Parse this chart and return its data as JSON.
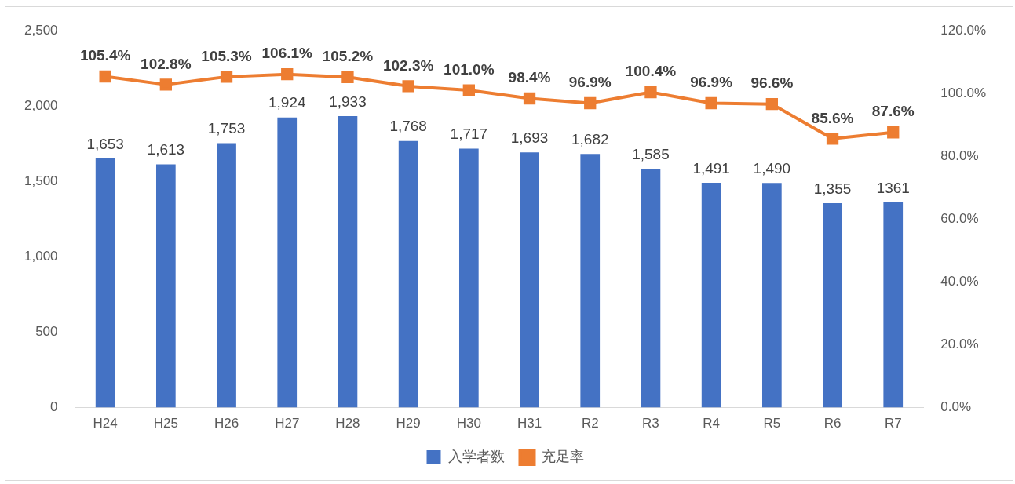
{
  "chart_data": {
    "type": "bar",
    "categories": [
      "H24",
      "H25",
      "H26",
      "H27",
      "H28",
      "H29",
      "H30",
      "H31",
      "R2",
      "R3",
      "R4",
      "R5",
      "R6",
      "R7"
    ],
    "series": [
      {
        "name": "入学者数",
        "color": "#4472c4",
        "values": [
          1653,
          1613,
          1753,
          1924,
          1933,
          1768,
          1717,
          1693,
          1682,
          1585,
          1491,
          1490,
          1355,
          1361
        ],
        "value_labels": [
          "1,653",
          "1,613",
          "1,753",
          "1,924",
          "1,933",
          "1,768",
          "1,717",
          "1,693",
          "1,682",
          "1,585",
          "1,491",
          "1,490",
          "1,355",
          "1361"
        ]
      },
      {
        "name": "充足率",
        "type": "line",
        "axis": "y2",
        "color": "#ed7d31",
        "marker": "square",
        "values": [
          105.4,
          102.8,
          105.3,
          106.1,
          105.2,
          102.3,
          101.0,
          98.4,
          96.9,
          100.4,
          96.9,
          96.6,
          85.6,
          87.6
        ],
        "value_labels": [
          "105.4%",
          "102.8%",
          "105.3%",
          "106.1%",
          "105.2%",
          "102.3%",
          "101.0%",
          "98.4%",
          "96.9%",
          "100.4%",
          "96.9%",
          "96.6%",
          "85.6%",
          "87.6%"
        ]
      }
    ],
    "ylim": [
      0,
      2500
    ],
    "yticks": [
      0,
      {
        "value": 500,
        "label": "500"
      },
      {
        "value": 1000,
        "label": "1,000"
      },
      {
        "value": 1500,
        "label": "1,500"
      },
      {
        "value": 2000,
        "label": "2,000"
      },
      {
        "value": 2500,
        "label": "2,500"
      }
    ],
    "y2lim": [
      0,
      120
    ],
    "y2ticks": [
      {
        "value": 0,
        "label": "0.0%"
      },
      {
        "value": 20,
        "label": "20.0%"
      },
      {
        "value": 40,
        "label": "40.0%"
      },
      {
        "value": 60,
        "label": "60.0%"
      },
      {
        "value": 80,
        "label": "80.0%"
      },
      {
        "value": 100,
        "label": "100.0%"
      },
      {
        "value": 120,
        "label": "120.0%"
      }
    ],
    "legend": "bottom"
  }
}
